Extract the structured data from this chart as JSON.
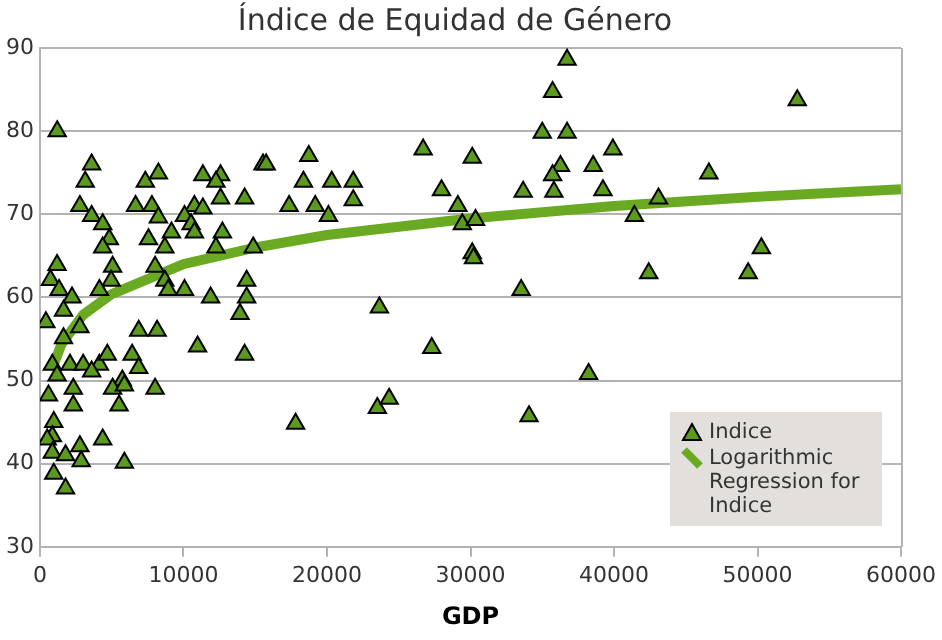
{
  "chart_data": {
    "type": "scatter",
    "title": "Índice de Equidad de Género",
    "xlabel": "GDP",
    "xlim": [
      0,
      60000
    ],
    "xticks": [
      0,
      10000,
      20000,
      30000,
      40000,
      50000,
      60000
    ],
    "ylim": [
      30,
      90
    ],
    "yticks": [
      30,
      40,
      50,
      60,
      70,
      80,
      90
    ],
    "grid": "y",
    "legend": "bottom right",
    "series": [
      {
        "name": "Indice",
        "marker": "triangle",
        "color": "#5b9a1e",
        "x": [
          1200,
          3600,
          3150,
          7340,
          8250,
          11350,
          12580,
          12260,
          15540,
          2780,
          3600,
          4370,
          6660,
          7800,
          8250,
          10760,
          11350,
          10070,
          10530,
          10760,
          9160,
          12580,
          14260,
          4830,
          4370,
          7560,
          8700,
          12710,
          12260,
          14860,
          1190,
          730,
          1330,
          5060,
          4960,
          4140,
          2230,
          1640,
          410,
          8020,
          8700,
          8930,
          10070,
          11890,
          14400,
          14400,
          13940,
          6880,
          8160,
          10980,
          14260,
          1640,
          2780,
          860,
          2090,
          3010,
          4140,
          4690,
          6420,
          6880,
          3600,
          1190,
          5740,
          5060,
          2320,
          5880,
          590,
          8020,
          5510,
          2320,
          960,
          860,
          500,
          4370,
          2780,
          860,
          1780,
          2870,
          5880,
          960,
          1780,
          15760,
          18730,
          18360,
          20330,
          21830,
          21830,
          17360,
          19180,
          20100,
          26700,
          30120,
          27980,
          29120,
          29430,
          30350,
          30120,
          30210,
          23650,
          27300,
          23510,
          24330,
          17810,
          36730,
          35720,
          35000,
          36730,
          39920,
          38550,
          36270,
          35720,
          33670,
          35810,
          39230,
          43100,
          41420,
          42420,
          33530,
          38230,
          34080,
          52770,
          46610,
          50270,
          49350
        ],
        "values": [
          80,
          76,
          73.9,
          73.9,
          74.9,
          74.7,
          74.7,
          73.9,
          76,
          71,
          69.8,
          68.8,
          71,
          71,
          69.6,
          71,
          70.7,
          69.8,
          68.8,
          67.8,
          67.8,
          71.9,
          71.9,
          67,
          66,
          67,
          66,
          67.8,
          66,
          66,
          63.9,
          62.1,
          60.9,
          63.7,
          62,
          60.9,
          60,
          58.4,
          57,
          63.7,
          62,
          60.9,
          60.9,
          60,
          62,
          60,
          58,
          56,
          56,
          54.1,
          53.1,
          55.1,
          56.4,
          51.9,
          51.9,
          51.9,
          51.9,
          53.1,
          53.1,
          51.5,
          51.1,
          50.6,
          50,
          49,
          49,
          49.4,
          48.2,
          49,
          47,
          47,
          45,
          43.3,
          42.9,
          42.9,
          42.1,
          41.3,
          41,
          40.3,
          40.1,
          38.8,
          37,
          76,
          77,
          73.9,
          73.9,
          73.9,
          71.7,
          71,
          71,
          69.8,
          77.8,
          76.8,
          72.9,
          71,
          68.8,
          69.3,
          65.3,
          64.7,
          58.8,
          53.9,
          46.7,
          47.8,
          44.8,
          88.6,
          84.7,
          79.8,
          79.8,
          77.8,
          75.8,
          75.8,
          74.7,
          72.7,
          72.7,
          72.9,
          71.9,
          69.8,
          62.9,
          60.9,
          50.8,
          45.7,
          83.7,
          74.9,
          65.9,
          62.9
        ]
      },
      {
        "name": "Logarithmic Regression for Indice",
        "type": "line",
        "marker": "none",
        "color": "#6aaa22",
        "x": [
          800,
          1500,
          3000,
          5000,
          10000,
          15000,
          20000,
          30000,
          40000,
          50000,
          60000
        ],
        "values": [
          51.2,
          54.4,
          57.9,
          60.4,
          64,
          66,
          67.5,
          69.5,
          71,
          72.1,
          73
        ]
      }
    ]
  }
}
